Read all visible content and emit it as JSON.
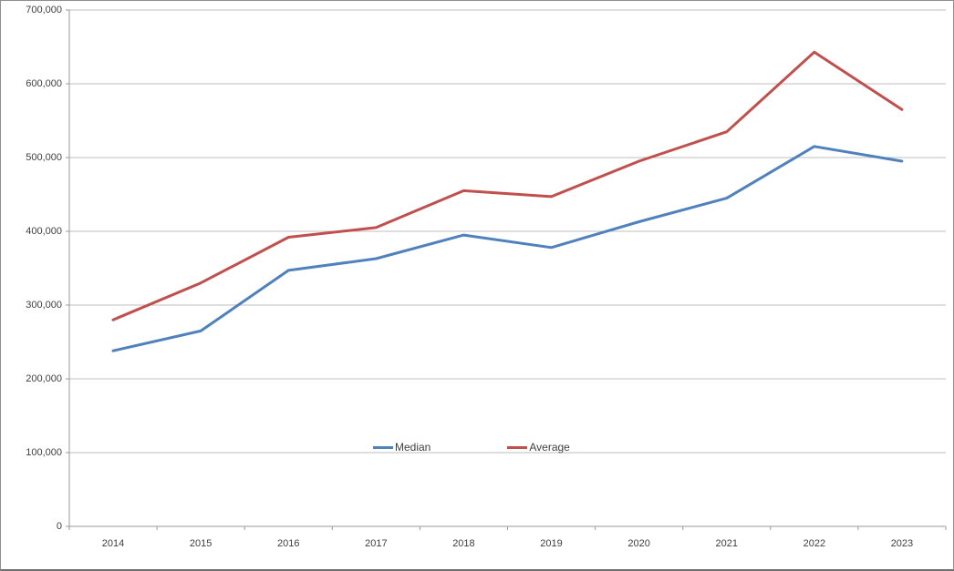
{
  "frame": {
    "background": "#ffffff",
    "border_color": "#8f8f8f"
  },
  "chart_data": {
    "type": "line",
    "title": "",
    "xlabel": "",
    "ylabel": "",
    "categories": [
      "2014",
      "2015",
      "2016",
      "2017",
      "2018",
      "2019",
      "2020",
      "2021",
      "2022",
      "2023"
    ],
    "series": [
      {
        "name": "Median",
        "color": "#4F81BD",
        "values": [
          238000,
          265000,
          347000,
          363000,
          395000,
          378000,
          413000,
          445000,
          515000,
          495000
        ]
      },
      {
        "name": "Average",
        "color": "#C0504D",
        "values": [
          280000,
          330000,
          392000,
          405000,
          455000,
          447000,
          495000,
          535000,
          643000,
          565000
        ]
      }
    ],
    "ylim": [
      0,
      700000
    ],
    "ytick_step": 100000,
    "ytick_labels": [
      "0",
      "100,000",
      "200,000",
      "300,000",
      "400,000",
      "500,000",
      "600,000",
      "700,000"
    ],
    "grid": "horizontal",
    "gridline_color": "#BFBFBF",
    "axis_color": "#9A9A9A",
    "tick_color": "#9A9A9A",
    "label_color": "#404040",
    "legend_position": "inside-bottom-center",
    "line_width": 3
  }
}
